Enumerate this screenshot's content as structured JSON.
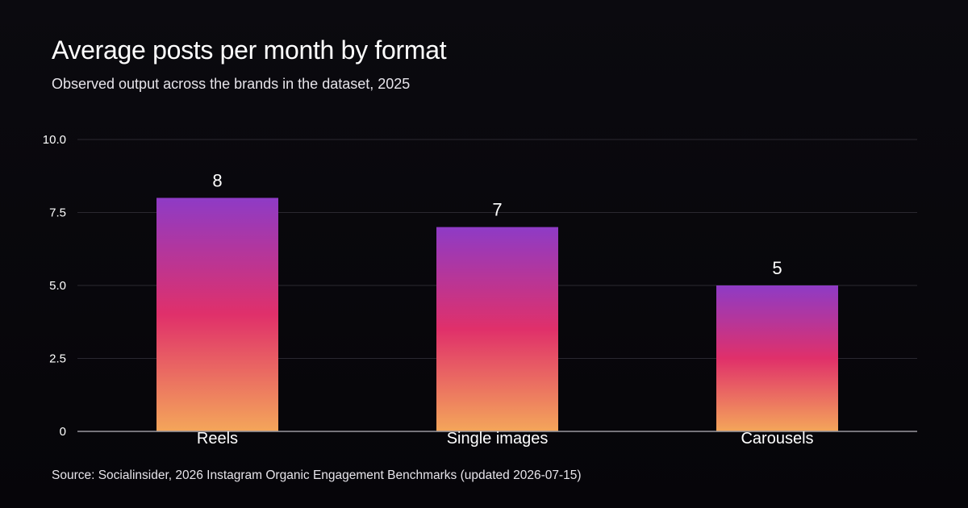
{
  "chart_data": {
    "type": "bar",
    "title": "Average posts per month by format",
    "subtitle": "Observed output across the brands in the dataset, 2025",
    "xlabel": "",
    "ylabel": "",
    "categories": [
      "Reels",
      "Single images",
      "Carousels"
    ],
    "values": [
      8,
      7,
      5
    ],
    "data_labels": [
      "8",
      "7",
      "5"
    ],
    "ylim": [
      0,
      10
    ],
    "yticks": [
      0,
      2.5,
      5,
      7.5,
      10
    ],
    "ytick_labels": [
      "0",
      "2.5",
      "5.0",
      "7.5",
      "10.0"
    ],
    "grid": true,
    "legend": "none",
    "source": "Source: Socialinsider, 2026 Instagram Organic Engagement Benchmarks (updated 2026-07-15)"
  },
  "colors": {
    "background": "#08070b",
    "bar_top": "#8e3bc6",
    "bar_mid": "#e0306a",
    "bar_bottom": "#f4a65a",
    "gridline": "#2a2830",
    "axis": "#9a98a0"
  }
}
